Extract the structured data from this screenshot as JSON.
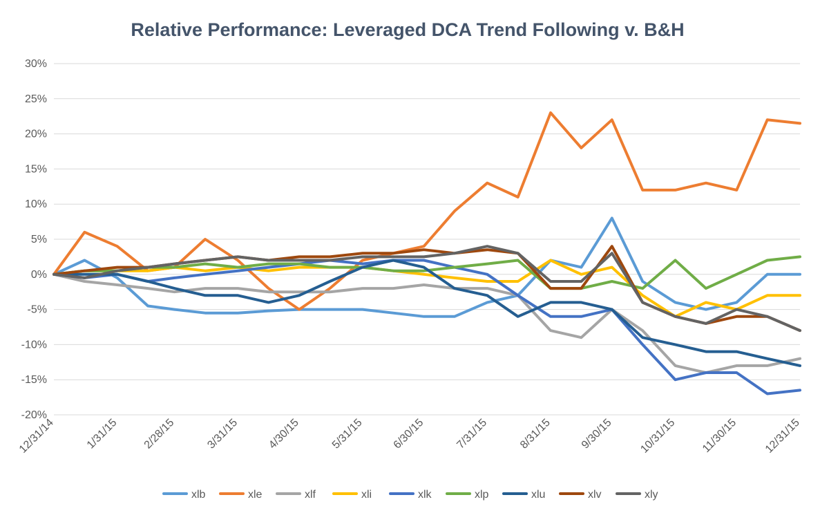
{
  "chart_data": {
    "type": "line",
    "title": "Relative Performance: Leveraged DCA Trend Following v. B&H",
    "xlabel": "",
    "ylabel": "",
    "ylim": [
      -20,
      30
    ],
    "y_ticks": [
      30,
      25,
      20,
      15,
      10,
      5,
      0,
      -5,
      -10,
      -15,
      -20
    ],
    "y_tick_labels": [
      "30%",
      "25%",
      "20%",
      "15%",
      "10%",
      "5%",
      "0%",
      "-5%",
      "-10%",
      "-15%",
      "-20%"
    ],
    "x_tick_labels": [
      "12/31/14",
      "1/31/15",
      "2/28/15",
      "3/31/15",
      "4/30/15",
      "5/31/15",
      "6/30/15",
      "7/31/15",
      "8/31/15",
      "9/30/15",
      "10/31/15",
      "11/30/15",
      "12/31/15"
    ],
    "grid": true,
    "legend_position": "bottom",
    "x_unit": "month-end dates",
    "x": [
      "12/31/14",
      "1/15/15",
      "1/31/15",
      "2/15/15",
      "2/28/15",
      "3/15/15",
      "3/31/15",
      "4/15/15",
      "4/30/15",
      "5/15/15",
      "5/31/15",
      "6/15/15",
      "6/30/15",
      "7/15/15",
      "7/31/15",
      "8/15/15",
      "8/31/15",
      "9/15/15",
      "9/30/15",
      "10/15/15",
      "10/31/15",
      "11/15/15",
      "11/30/15",
      "12/15/15",
      "12/31/15"
    ],
    "series": [
      {
        "name": "xlb",
        "color": "#5b9bd5",
        "values": [
          0,
          2,
          -0.5,
          -4.5,
          -5,
          -5.5,
          -5.5,
          -5.2,
          -5,
          -5,
          -5,
          -5.5,
          -6,
          -6,
          -4,
          -3,
          2,
          1,
          8,
          -1,
          -4,
          -5,
          -4,
          0,
          0
        ]
      },
      {
        "name": "xle",
        "color": "#ed7d31",
        "values": [
          0,
          6,
          4,
          0.5,
          1,
          5,
          2,
          -2,
          -5,
          -2,
          2,
          3,
          4,
          9,
          13,
          11,
          23,
          18,
          22,
          12,
          12,
          13,
          12,
          22,
          21.5
        ]
      },
      {
        "name": "xlf",
        "color": "#a5a5a5",
        "values": [
          0,
          -1,
          -1.5,
          -2,
          -2.5,
          -2,
          -2,
          -2.5,
          -2.5,
          -2.5,
          -2,
          -2,
          -1.5,
          -2,
          -2,
          -3,
          -8,
          -9,
          -5,
          -8,
          -13,
          -14,
          -13,
          -13,
          -12
        ]
      },
      {
        "name": "xli",
        "color": "#ffc000",
        "values": [
          0,
          0.5,
          0.5,
          0.5,
          1,
          0.5,
          1,
          0.5,
          1,
          1,
          1,
          0.5,
          0,
          -0.5,
          -1,
          -1,
          2,
          0,
          1,
          -3,
          -6,
          -4,
          -5,
          -3,
          -3
        ]
      },
      {
        "name": "xlk",
        "color": "#4472c4",
        "values": [
          0,
          -0.5,
          0,
          -1,
          -0.5,
          0,
          0.5,
          1,
          1.5,
          2,
          1.5,
          2,
          2,
          1,
          0,
          -3,
          -6,
          -6,
          -5,
          -10,
          -15,
          -14,
          -14,
          -17,
          -16.5
        ]
      },
      {
        "name": "xlp",
        "color": "#70ad47",
        "values": [
          0,
          0.5,
          0.5,
          1,
          1,
          1.5,
          1,
          1.5,
          1.5,
          1,
          1,
          0.5,
          0.5,
          1,
          1.5,
          2,
          -2,
          -2,
          -1,
          -2,
          2,
          -2,
          0,
          2,
          2.5
        ]
      },
      {
        "name": "xlu",
        "color": "#255e91",
        "values": [
          0,
          0,
          0,
          -1,
          -2,
          -3,
          -3,
          -4,
          -3,
          -1,
          1,
          2,
          1,
          -2,
          -3,
          -6,
          -4,
          -4,
          -5,
          -9,
          -10,
          -11,
          -11,
          -12,
          -13
        ]
      },
      {
        "name": "xlv",
        "color": "#9e480e",
        "values": [
          0,
          0.5,
          1,
          1,
          1.5,
          2,
          2.5,
          2,
          2.5,
          2.5,
          3,
          3,
          3.5,
          3,
          3.5,
          3,
          -2,
          -2,
          4,
          -4,
          -6,
          -7,
          -6,
          -6,
          -8
        ]
      },
      {
        "name": "xly",
        "color": "#636363",
        "values": [
          0,
          -0.5,
          0.5,
          1,
          1.5,
          2,
          2.5,
          2,
          2,
          2,
          2.5,
          2.5,
          2.5,
          3,
          4,
          3,
          -1,
          -1,
          3,
          -4,
          -6,
          -7,
          -5,
          -6,
          -8
        ]
      }
    ]
  }
}
